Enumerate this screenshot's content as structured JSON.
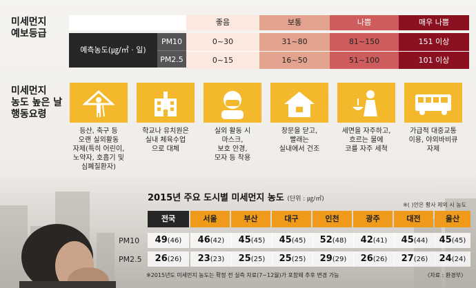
{
  "forecast": {
    "title_line1": "미세먼지",
    "title_line2": "예보등급",
    "grades": [
      "좋음",
      "보통",
      "나쁨",
      "매우 나쁨"
    ],
    "grade_colors": [
      "#fbe9e0",
      "#e3a38e",
      "#cf5c5c",
      "#8b1020"
    ],
    "measure_label": "예측농도(㎍/㎥ · 일)",
    "rows": [
      {
        "pm": "PM10",
        "values": [
          "0~30",
          "31~80",
          "81~150",
          "151 이상"
        ]
      },
      {
        "pm": "PM2.5",
        "values": [
          "0~15",
          "16~50",
          "51~100",
          "101 이상"
        ]
      }
    ]
  },
  "actions": {
    "title_line1": "미세먼지",
    "title_line2": "농도 높은 날",
    "title_line3": "행동요령",
    "cards": [
      {
        "icon": "elderly-walking-icon",
        "lines": [
          "등산, 축구 등",
          "오랜 실외활동",
          "자제(특히 어린이,",
          "노약자, 호흡기 및",
          "심폐질환자)"
        ]
      },
      {
        "icon": "school-building-icon",
        "lines": [
          "학교나 유치원은",
          "실내 체육수업",
          "으로 대체"
        ]
      },
      {
        "icon": "masked-person-icon",
        "lines": [
          "실외 활동 시",
          "마스크,",
          "보호 안경,",
          "모자 등 착용"
        ]
      },
      {
        "icon": "house-icon",
        "lines": [
          "창문을 닫고,",
          "빨래는",
          "실내에서 건조"
        ]
      },
      {
        "icon": "washing-face-icon",
        "lines": [
          "세면을 자주하고,",
          "흐르는 물에",
          "코를 자주 세척"
        ]
      },
      {
        "icon": "bus-icon",
        "lines": [
          "가급적 대중교통",
          "이용, 야외바비큐",
          "자제"
        ]
      }
    ]
  },
  "city_table": {
    "title": "2015년 주요 도시별 미세먼지 농도",
    "unit": "(단위 : ㎍/㎥)",
    "note": "※(   )안은 황사 제외 시 농도",
    "cities": [
      "전국",
      "서울",
      "부산",
      "대구",
      "인천",
      "광주",
      "대전",
      "울산"
    ],
    "rows": [
      {
        "label": "PM10",
        "values": [
          "49",
          "46",
          "45",
          "45",
          "52",
          "42",
          "45",
          "45"
        ],
        "excl": [
          "46",
          "42",
          "45",
          "45",
          "48",
          "41",
          "44",
          "45"
        ]
      },
      {
        "label": "PM2.5",
        "values": [
          "26",
          "23",
          "25",
          "25",
          "29",
          "26",
          "27",
          "24"
        ],
        "excl": [
          "26",
          "23",
          "25",
          "25",
          "29",
          "26",
          "26",
          "24"
        ]
      }
    ],
    "footnote": "※2015년도 미세먼지 농도는 확정 전 실측 자료(7~12월)가 포함돼 추후 변경 가능",
    "source": "〈자료 : 환경부〉"
  },
  "colors": {
    "accent_yellow": "#f4b82d",
    "header_dark": "#262626",
    "header_orange": "#ef9a1a"
  }
}
